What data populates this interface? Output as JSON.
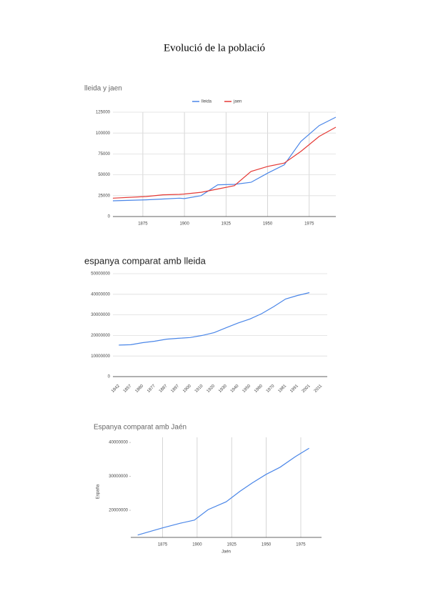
{
  "title": "Evolució de la població",
  "chart_data": [
    {
      "type": "line",
      "title": "lleida y jaen",
      "x": [
        1857,
        1877,
        1887,
        1897,
        1900,
        1910,
        1920,
        1930,
        1940,
        1950,
        1960,
        1970,
        1981,
        1991
      ],
      "series": [
        {
          "name": "lleida",
          "color": "#4a86e8",
          "values": [
            18800,
            20000,
            21000,
            22000,
            21500,
            25000,
            38000,
            38500,
            41000,
            52000,
            62000,
            90000,
            109000,
            119000
          ]
        },
        {
          "name": "jaen",
          "color": "#e53935",
          "values": [
            22000,
            24000,
            26000,
            26500,
            27000,
            29000,
            33000,
            37000,
            54000,
            60000,
            64000,
            78000,
            96000,
            107000
          ]
        }
      ],
      "xlim": [
        1857,
        1991
      ],
      "xticks": [
        1875,
        1900,
        1925,
        1950,
        1975
      ],
      "ylim": [
        0,
        125000
      ],
      "yticks": [
        0,
        25000,
        50000,
        75000,
        100000,
        125000
      ],
      "grid": "both",
      "legend": "top"
    },
    {
      "type": "line",
      "title": "espanya comparat amb lleida",
      "categories": [
        "1842",
        "1857",
        "1860",
        "1877",
        "1887",
        "1897",
        "1900",
        "1910",
        "1920",
        "1930",
        "1940",
        "1950",
        "1960",
        "1970",
        "1981",
        "1991",
        "2001",
        "2011"
      ],
      "values": [
        15300000,
        15500000,
        16500000,
        17200000,
        18200000,
        18600000,
        19000000,
        20000000,
        21400000,
        23700000,
        26000000,
        28000000,
        30600000,
        34000000,
        37700000,
        39400000,
        40800000,
        null
      ],
      "color": "#4a86e8",
      "ylim": [
        0,
        50000000
      ],
      "yticks": [
        0,
        10000000,
        20000000,
        30000000,
        40000000,
        50000000
      ],
      "grid": "y"
    },
    {
      "type": "line",
      "title": "Espanya comparat amb Jaén",
      "x_label": "Jaén",
      "y_label": "España",
      "x": [
        1857,
        1875,
        1888,
        1898,
        1908,
        1921,
        1931,
        1940,
        1950,
        1960,
        1971,
        1981
      ],
      "values": [
        12700000,
        14800000,
        16200000,
        17100000,
        20200000,
        22500000,
        25600000,
        28100000,
        30600000,
        32700000,
        35800000,
        38300000
      ],
      "color": "#4a86e8",
      "xlim": [
        1852,
        1990
      ],
      "xticks": [
        1875,
        1900,
        1925,
        1950,
        1975
      ],
      "ylim": [
        12000000,
        41500000
      ],
      "yticks": [
        20000000,
        30000000,
        40000000
      ],
      "grid": "x"
    }
  ]
}
